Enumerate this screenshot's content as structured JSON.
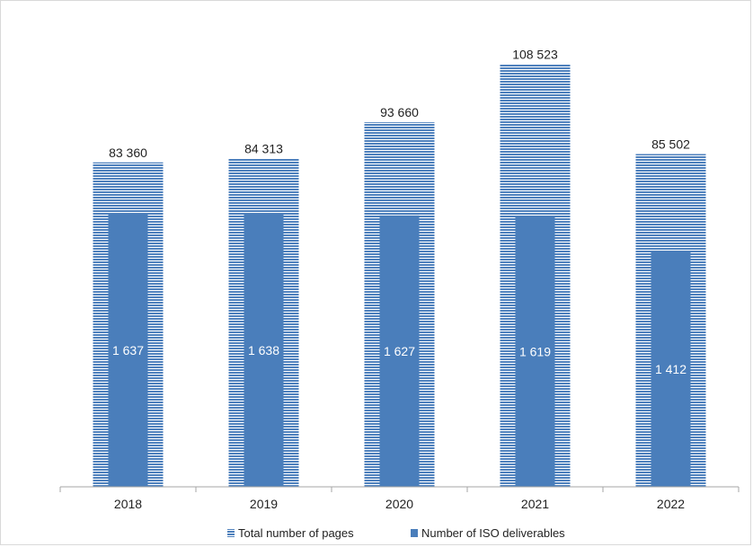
{
  "chart_data": {
    "type": "bar",
    "categories": [
      "2018",
      "2019",
      "2020",
      "2021",
      "2022"
    ],
    "series": [
      {
        "name": "Total number of pages",
        "values": [
          83360,
          84313,
          93660,
          108523,
          85502
        ],
        "labels": [
          "83 360",
          "84 313",
          "93 660",
          "108 523",
          "85 502"
        ],
        "axis": "primary",
        "color": "#4f81bd",
        "pattern": "horizontal-stripes"
      },
      {
        "name": "Number of ISO deliverables",
        "values": [
          1637,
          1638,
          1627,
          1619,
          1412
        ],
        "labels": [
          "1 637",
          "1 638",
          "1 627",
          "1 619",
          "1 412"
        ],
        "axis": "secondary",
        "color": "#4a7ebb"
      }
    ],
    "title": "",
    "xlabel": "",
    "ylabel": "",
    "ylim_primary": [
      0,
      120000
    ],
    "ylim_secondary": [
      0,
      2800
    ],
    "grid": false,
    "legend_position": "bottom",
    "colors": {
      "stripe": "#4f81bd",
      "solid": "#4a7ebb",
      "axis": "#a6a6a6",
      "text": "#222222",
      "inner_label": "#ffffff"
    }
  }
}
